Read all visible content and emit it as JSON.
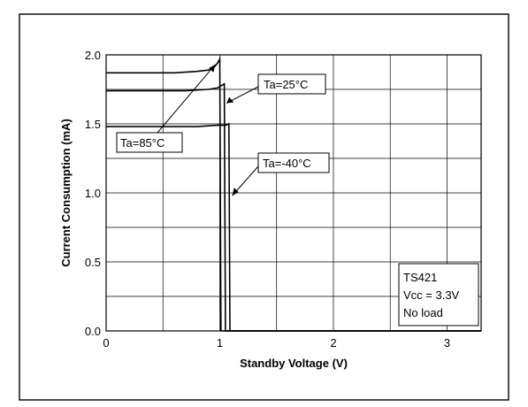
{
  "chart_data": {
    "type": "line",
    "title": "",
    "xlabel": "Standby Voltage (V)",
    "ylabel": "Current Consumption (mA)",
    "xlim": [
      0,
      3.3
    ],
    "ylim": [
      0,
      2.0
    ],
    "x_ticks": [
      0,
      1,
      2,
      3
    ],
    "x_tick_labels": [
      "0",
      "1",
      "2",
      "3"
    ],
    "y_ticks": [
      0.0,
      0.5,
      1.0,
      1.5,
      2.0
    ],
    "y_tick_labels": [
      "0.0",
      "0.5",
      "1.0",
      "1.5",
      "2.0"
    ],
    "grid": true,
    "series": [
      {
        "name": "Ta=85°C",
        "x": [
          0,
          0.6,
          0.8,
          0.9,
          0.95,
          0.98,
          1.0,
          1.01,
          1.02,
          3.3
        ],
        "y": [
          1.87,
          1.87,
          1.88,
          1.89,
          1.91,
          1.94,
          1.97,
          0.0,
          0.0,
          0.0
        ]
      },
      {
        "name": "Ta=25°C",
        "x": [
          0,
          0.7,
          0.9,
          0.98,
          1.02,
          1.04,
          1.05,
          3.3
        ],
        "y": [
          1.74,
          1.74,
          1.75,
          1.76,
          1.78,
          1.79,
          0.0,
          0.0
        ]
      },
      {
        "name": "Ta=-40°C",
        "x": [
          0,
          0.8,
          0.98,
          1.05,
          1.08,
          1.09,
          3.3
        ],
        "y": [
          1.48,
          1.48,
          1.49,
          1.49,
          1.5,
          0.0,
          0.0
        ]
      }
    ],
    "annotations": [
      {
        "text": "Ta=25°C"
      },
      {
        "text": "Ta=85°C"
      },
      {
        "text": "Ta=-40°C"
      }
    ],
    "info_box": [
      "TS421",
      "Vcc = 3.3V",
      "No load"
    ]
  }
}
